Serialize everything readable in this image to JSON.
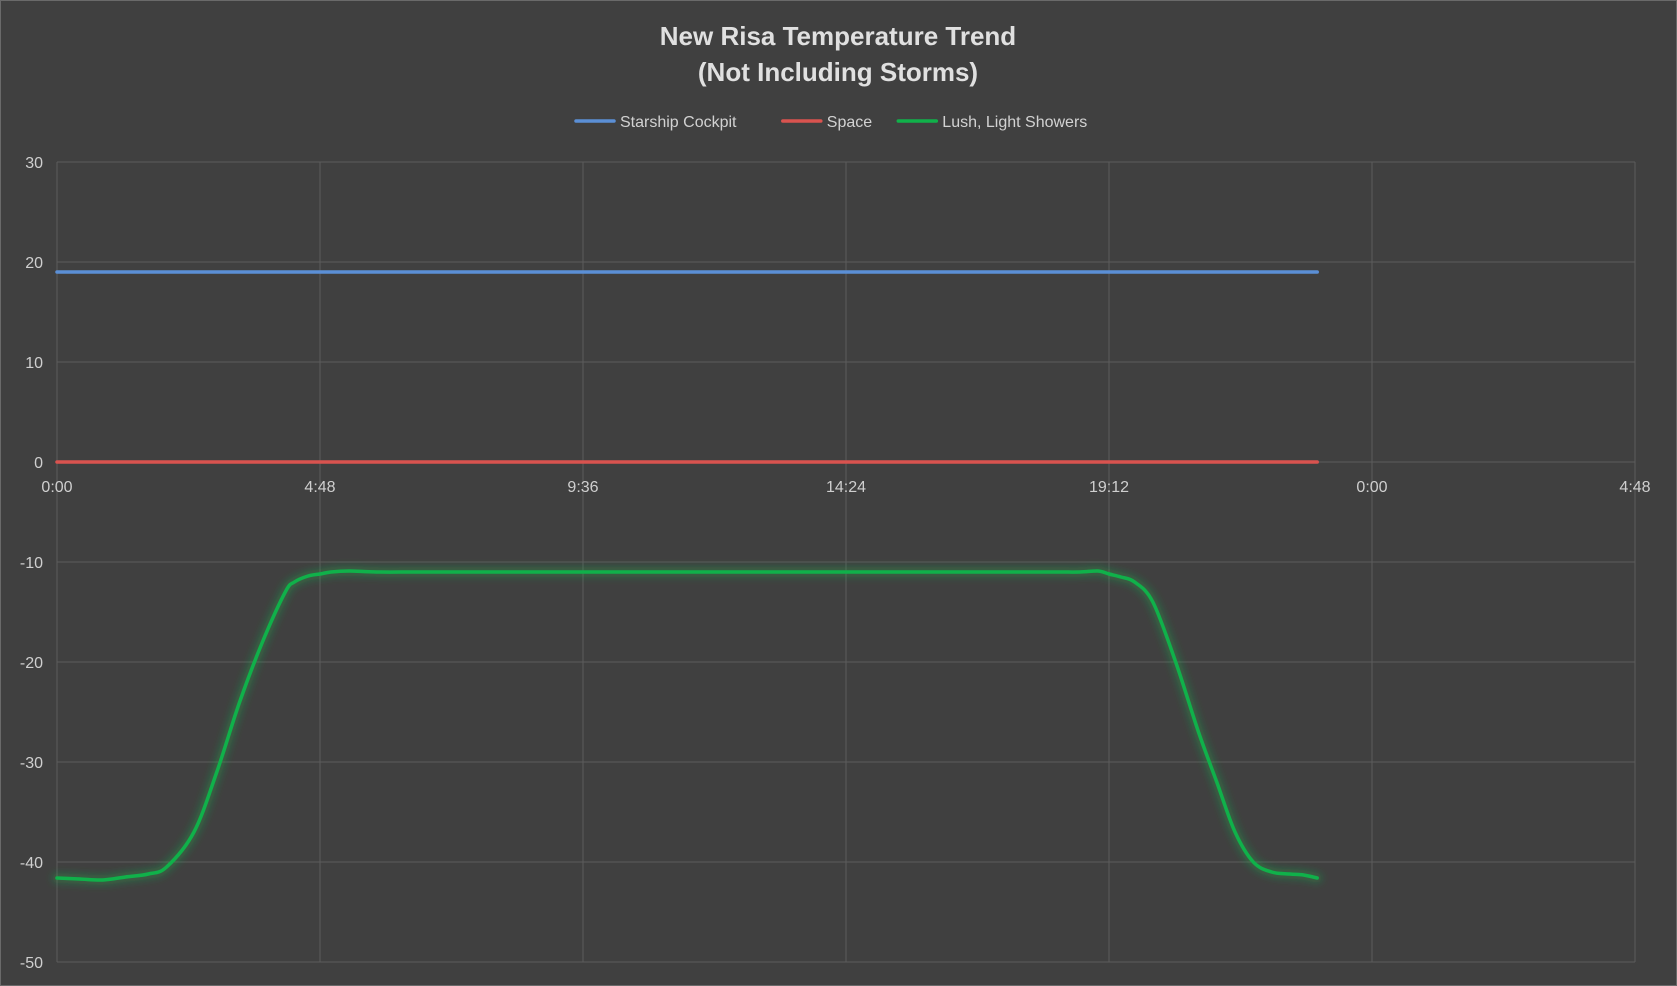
{
  "chart_data": {
    "type": "line",
    "title": "New Risa Temperature Trend",
    "subtitle": "(Not Including Storms)",
    "xlabel": "",
    "ylabel": "",
    "xlim": [
      0,
      1728
    ],
    "ylim": [
      -50,
      30
    ],
    "yticks": [
      30,
      20,
      10,
      0,
      -10,
      -20,
      -30,
      -40,
      -50
    ],
    "xticks": [
      {
        "value": 0,
        "label": "0:00"
      },
      {
        "value": 288,
        "label": "4:48"
      },
      {
        "value": 576,
        "label": "9:36"
      },
      {
        "value": 864,
        "label": "14:24"
      },
      {
        "value": 1152,
        "label": "19:12"
      },
      {
        "value": 1440,
        "label": "0:00"
      },
      {
        "value": 1728,
        "label": "4:48"
      }
    ],
    "grid": true,
    "legend_position": "top-center",
    "series": [
      {
        "name": "Starship Cockpit",
        "color": "#5b8fd6",
        "x": [
          0,
          1380
        ],
        "y": [
          19,
          19
        ]
      },
      {
        "name": "Space",
        "color": "#d9534f",
        "x": [
          0,
          1380
        ],
        "y": [
          0,
          0
        ]
      },
      {
        "name": "Lush, Light Showers",
        "color": "#10b14a",
        "x": [
          0,
          25,
          50,
          75,
          100,
          120,
          150,
          175,
          200,
          225,
          250,
          260,
          275,
          288,
          300,
          320,
          350,
          400,
          500,
          600,
          700,
          800,
          900,
          1000,
          1090,
          1120,
          1140,
          1152,
          1165,
          1180,
          1200,
          1225,
          1250,
          1270,
          1290,
          1310,
          1330,
          1350,
          1365,
          1380
        ],
        "y": [
          -41.6,
          -41.7,
          -41.8,
          -41.5,
          -41.2,
          -40.5,
          -37,
          -31,
          -24,
          -18,
          -13,
          -12,
          -11.4,
          -11.2,
          -11,
          -10.9,
          -11,
          -11,
          -11,
          -11,
          -11,
          -11,
          -11,
          -11,
          -11,
          -11,
          -10.9,
          -11.2,
          -11.5,
          -12,
          -14,
          -20,
          -27,
          -32,
          -37,
          -40,
          -41,
          -41.2,
          -41.3,
          -41.6
        ]
      }
    ]
  }
}
